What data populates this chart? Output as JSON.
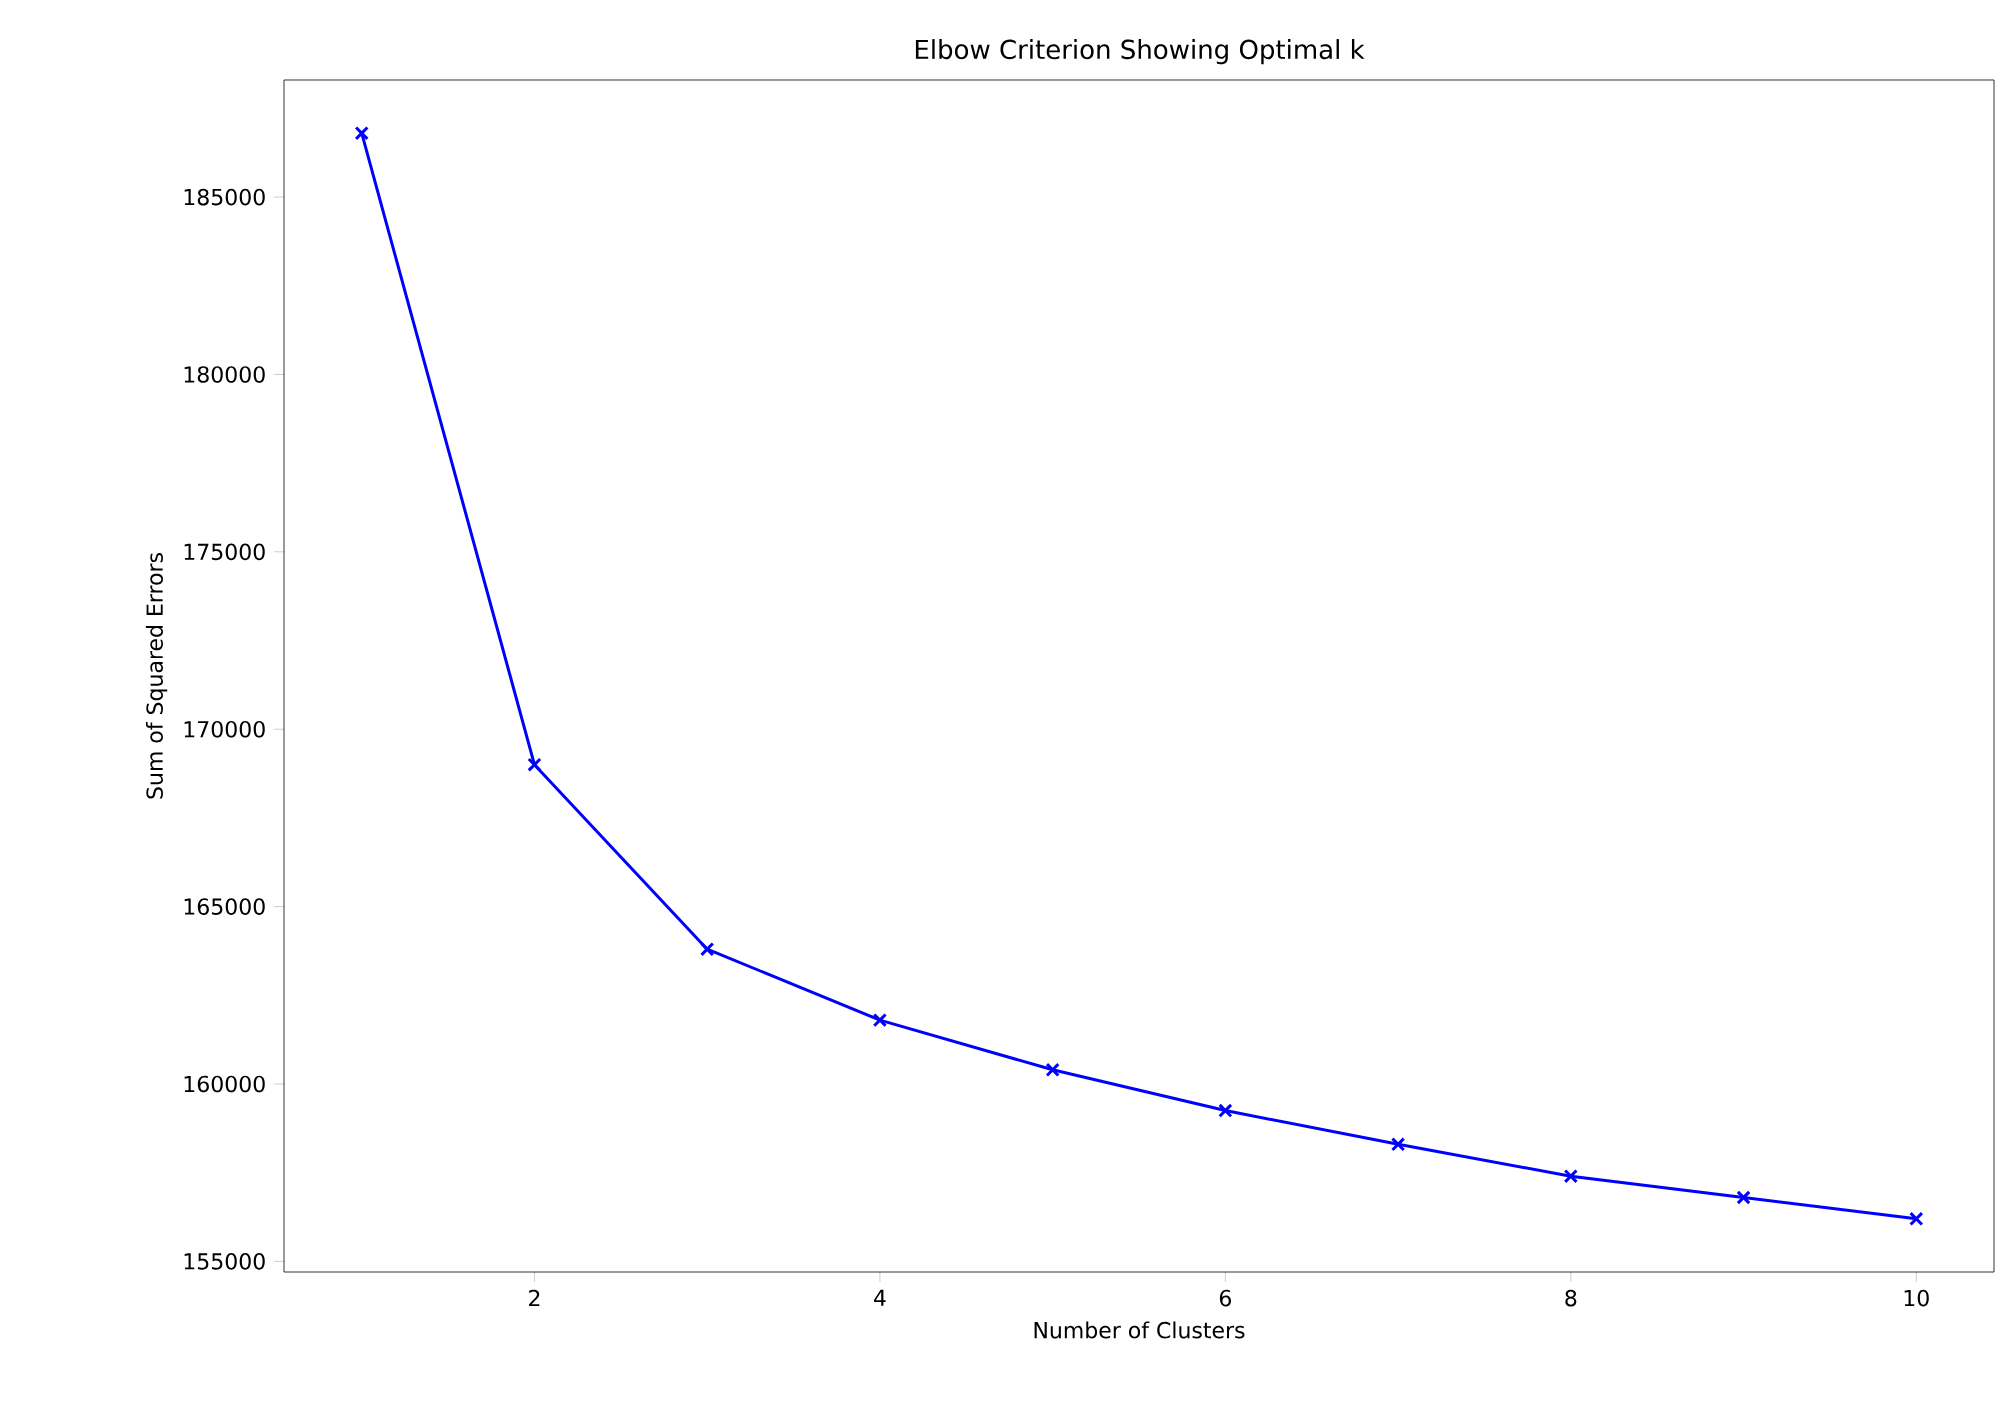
{
  "chart_data": {
    "type": "line",
    "title": "Elbow Criterion Showing Optimal k",
    "xlabel": "Number of Clusters",
    "ylabel": "Sum of Squared Errors",
    "x": [
      1,
      2,
      3,
      4,
      5,
      6,
      7,
      8,
      9,
      10
    ],
    "series": [
      {
        "color": "#0000ff",
        "values": [
          186800,
          169000,
          163800,
          161800,
          160400,
          159250,
          158300,
          157400,
          156800,
          156200
        ]
      }
    ],
    "xlim": [
      0.55,
      10.45
    ],
    "ylim": [
      154700,
      188300
    ],
    "xticks": [
      2,
      4,
      6,
      8,
      10
    ],
    "yticks": [
      155000,
      160000,
      165000,
      170000,
      175000,
      180000,
      185000
    ],
    "marker": "cross",
    "line_style": "solid"
  }
}
